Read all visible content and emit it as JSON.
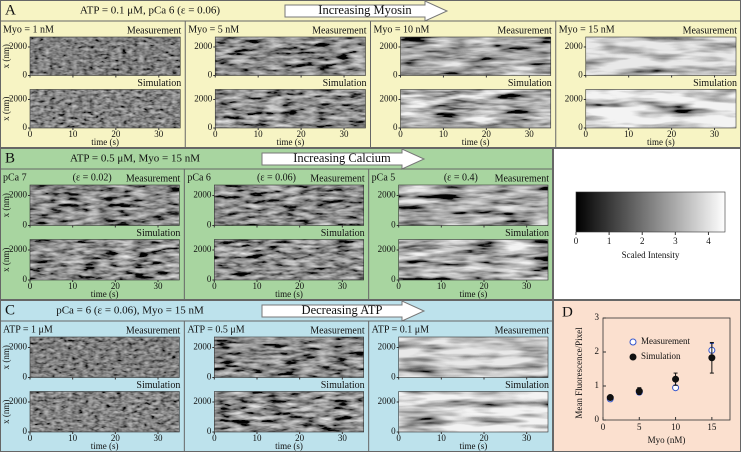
{
  "panels": [
    {
      "letter": "A",
      "header": "ATP = 0.1 μM, pCa 6 (ε = 0.06)",
      "arrow": "Increasing Myosin",
      "columns": [
        {
          "label": "Myo = 1 nM"
        },
        {
          "label": "Myo = 5 nM"
        },
        {
          "label": "Myo = 10 nM"
        },
        {
          "label": "Myo = 15 nM"
        }
      ]
    },
    {
      "letter": "B",
      "header": "ATP = 0.5 μM, Myo = 15 nM",
      "arrow": "Increasing Calcium",
      "columns": [
        {
          "label": "pCa 7",
          "note": "(ε = 0.02)"
        },
        {
          "label": "pCa 6",
          "note": "(ε = 0.06)"
        },
        {
          "label": "pCa 5",
          "note": "(ε = 0.4)"
        }
      ]
    },
    {
      "letter": "C",
      "header": "pCa = 6 (ε = 0.06), Myo = 15 nM",
      "arrow": "Decreasing ATP",
      "columns": [
        {
          "label": "ATP = 1 μM"
        },
        {
          "label": "ATP = 0.5 μM"
        },
        {
          "label": "ATP = 0.1 μM"
        }
      ]
    }
  ],
  "kymograph": {
    "measurement": "Measurement",
    "simulation": "Simulation",
    "xlabel": "time (s)",
    "ylabel": "x (nm)",
    "xlim": [
      0,
      35
    ],
    "xticks": [
      0,
      10,
      20,
      30
    ],
    "ylim": [
      0,
      2700
    ],
    "yticks": [
      0,
      2000
    ]
  },
  "colorbar": {
    "label": "Scaled Intensity",
    "lim": [
      0,
      4.5
    ],
    "ticks": [
      0,
      1,
      2,
      3,
      4
    ]
  },
  "chart_data": {
    "type": "scatter",
    "title": "D",
    "xlabel": "Myo (nM)",
    "ylabel": "Mean Fluorescence/Pixel",
    "xlim": [
      0,
      17.5
    ],
    "xticks": [
      0,
      5,
      10,
      15
    ],
    "ylim": [
      0,
      3
    ],
    "yticks": [
      0,
      1,
      2,
      3
    ],
    "legend": "upper-left",
    "series": [
      {
        "name": "Measurement",
        "color": "#3355cc",
        "marker": "open",
        "x": [
          1,
          5,
          10,
          15
        ],
        "values": [
          0.62,
          0.82,
          0.95,
          2.05
        ],
        "errors": [
          0.04,
          0.06,
          0.06,
          0.2
        ]
      },
      {
        "name": "Simulation",
        "color": "#111111",
        "marker": "filled",
        "x": [
          1,
          5,
          10,
          15
        ],
        "values": [
          0.66,
          0.85,
          1.2,
          1.83
        ],
        "errors": [
          0.05,
          0.1,
          0.18,
          0.45
        ]
      }
    ]
  }
}
